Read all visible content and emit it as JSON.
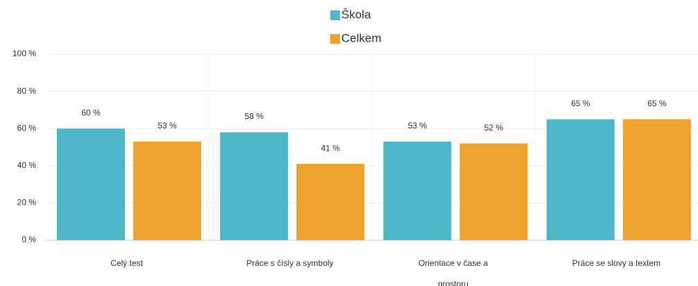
{
  "chart_data": {
    "type": "bar",
    "categories": [
      "Celý test",
      "Práce s čísly a symboly",
      "Orientace v čase a prostoru",
      "Práce se slovy a textem"
    ],
    "series": [
      {
        "name": "Škola",
        "color": "#4fb6c8",
        "values": [
          60,
          58,
          53,
          65
        ],
        "value_labels": [
          "60 %",
          "58 %",
          "53 %",
          "65 %"
        ]
      },
      {
        "name": "Celkem",
        "color": "#eca32f",
        "values": [
          53,
          41,
          52,
          65
        ],
        "value_labels": [
          "53 %",
          "41 %",
          "52 %",
          "65 %"
        ]
      }
    ],
    "ylim": [
      0,
      100
    ],
    "yticks": [
      {
        "value": 0,
        "label": "0 %"
      },
      {
        "value": 20,
        "label": "20 %"
      },
      {
        "value": 40,
        "label": "40 %"
      },
      {
        "value": 60,
        "label": "60 %"
      },
      {
        "value": 80,
        "label": "80 %"
      },
      {
        "value": 100,
        "label": "100 %"
      }
    ],
    "grid": true
  }
}
